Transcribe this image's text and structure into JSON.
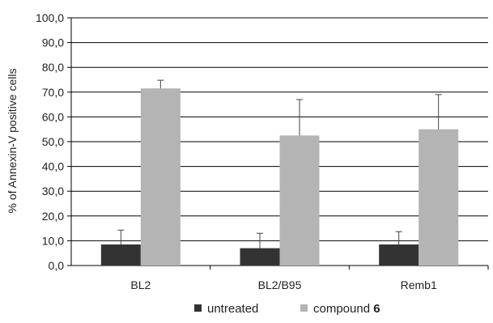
{
  "chart_data": {
    "type": "bar",
    "title": "",
    "xlabel": "",
    "ylabel": "% of Annexin-V positive cells",
    "ylim": [
      0,
      100
    ],
    "y_ticks": [
      "0,0",
      "10,0",
      "20,0",
      "30,0",
      "40,0",
      "50,0",
      "60,0",
      "70,0",
      "80,0",
      "90,0",
      "100,0"
    ],
    "grid": "horizontal",
    "legend_position": "bottom",
    "categories": [
      "BL2",
      "BL2/B95",
      "Remb1"
    ],
    "series": [
      {
        "name": "untreated",
        "color": "#333333",
        "values": [
          8.5,
          7.0,
          8.5
        ],
        "errors": [
          5.8,
          6.0,
          5.2
        ]
      },
      {
        "name": "compound 6",
        "name_prefix": "compound ",
        "name_bold": "6",
        "color": "#b4b4b4",
        "values": [
          71.5,
          52.5,
          55.0
        ],
        "errors": [
          3.3,
          14.5,
          14.0
        ]
      }
    ]
  }
}
